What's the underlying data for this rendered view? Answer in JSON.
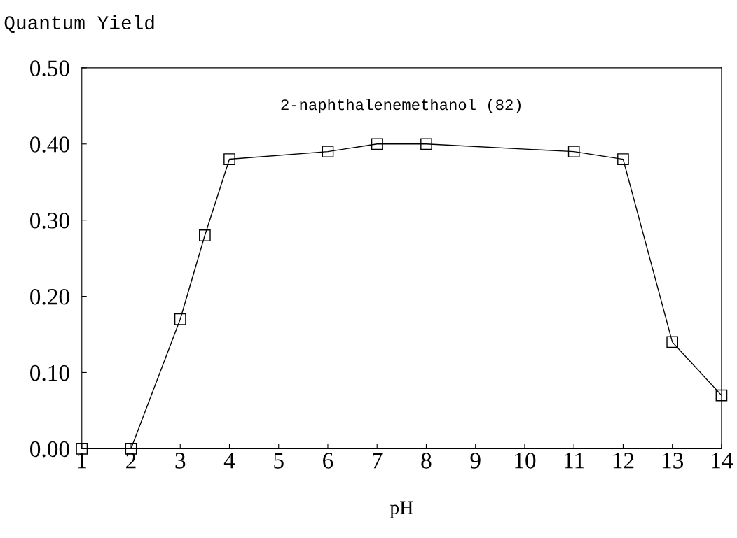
{
  "chart_data": {
    "type": "line",
    "xlabel": "pH",
    "ylabel": "Quantum Yield",
    "annotations": [
      "2-naphthalenemethanol (82)"
    ],
    "x": [
      1,
      2,
      3,
      3.5,
      4,
      6,
      7,
      8,
      11,
      12,
      13,
      14
    ],
    "series": [
      {
        "color": "#000000",
        "values": [
          0.0,
          0.0,
          0.17,
          0.28,
          0.38,
          0.39,
          0.4,
          0.4,
          0.39,
          0.38,
          0.14,
          0.07
        ]
      }
    ],
    "xlim": [
      1,
      14
    ],
    "xticks": [
      1,
      2,
      3,
      4,
      5,
      6,
      7,
      8,
      9,
      10,
      11,
      12,
      13,
      14
    ],
    "ylim": [
      0,
      0.5
    ],
    "yticks": [
      {
        "value": 0,
        "label": "0.00"
      },
      {
        "value": 0.1,
        "label": "0.10"
      },
      {
        "value": 0.2,
        "label": "0.20"
      },
      {
        "value": 0.3,
        "label": "0.30"
      },
      {
        "value": 0.4,
        "label": "0.40"
      },
      {
        "value": 0.5,
        "label": "0.50"
      }
    ],
    "marker": "square",
    "line_style": "solid",
    "grid": false
  }
}
